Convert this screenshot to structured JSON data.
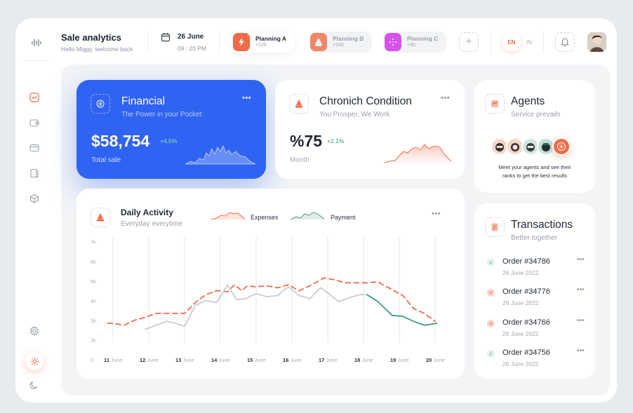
{
  "header": {
    "title": "Sale analytics",
    "subtitle": "Hello Miggy, welcome back",
    "date": "26 June",
    "time": "09 : 20 PM",
    "plans": [
      {
        "name": "Planning A",
        "count": "+120",
        "color": "#f06a47",
        "active": true
      },
      {
        "name": "Planning B",
        "count": "+100",
        "color": "#f06a47",
        "active": false
      },
      {
        "name": "Planning C",
        "count": "+90",
        "color": "#d653e8",
        "active": false
      }
    ],
    "lang_active": "EN",
    "lang_other": "IN"
  },
  "financial": {
    "title": "Financial",
    "subtitle": "The Power in your Pocket",
    "value": "$58,754",
    "delta": "+4,5%",
    "caption": "Total sale"
  },
  "chronic": {
    "title": "Chronich Condition",
    "subtitle": "You Prosper, We Work",
    "value": "%75",
    "delta": "+2.1%",
    "caption": "Month"
  },
  "agents": {
    "title": "Agents",
    "subtitle": "Service prevails",
    "text_line1": "Meet your agents and see their",
    "text_line2": "ranks to get the best results"
  },
  "activity": {
    "title": "Daily Activity",
    "subtitle": "Everyday everytime",
    "legend_expenses": "Expenses",
    "legend_payment": "Payment"
  },
  "transactions": {
    "title": "Transactions",
    "subtitle": "Better together",
    "items": [
      {
        "order": "Order #34786",
        "date": "26 June 2022",
        "status": "done"
      },
      {
        "order": "Order #34776",
        "date": "26 June 2022",
        "status": "cancel"
      },
      {
        "order": "Order #34766",
        "date": "26 June 2022",
        "status": "cancel"
      },
      {
        "order": "Order #34756",
        "date": "26 June 2022",
        "status": "done"
      }
    ]
  },
  "colors": {
    "accent": "#f06a47",
    "blue": "#2f63f1",
    "green": "#3aa58a",
    "teal": "#4e9b8c"
  },
  "chart_data": {
    "type": "line",
    "x_ticks": [
      {
        "num": "11",
        "label": "June"
      },
      {
        "num": "12",
        "label": "June"
      },
      {
        "num": "13",
        "label": "June"
      },
      {
        "num": "14",
        "label": "June"
      },
      {
        "num": "15",
        "label": "June"
      },
      {
        "num": "16",
        "label": "June"
      },
      {
        "num": "17",
        "label": "June"
      },
      {
        "num": "18",
        "label": "June"
      },
      {
        "num": "19",
        "label": "June"
      },
      {
        "num": "20",
        "label": "June"
      }
    ],
    "y_ticks": [
      "0",
      "2h",
      "3h",
      "4h",
      "5h",
      "6h",
      "7h"
    ],
    "ylim": [
      1,
      7
    ],
    "series": [
      {
        "name": "Expenses",
        "color": "#f06a47",
        "dashed": true,
        "x": [
          10.85,
          11.0,
          11.3,
          11.6,
          11.9,
          12.2,
          12.5,
          12.75,
          13.0,
          13.3,
          13.6,
          13.9,
          14.2,
          14.4,
          14.6,
          14.75,
          15.0,
          15.3,
          15.6,
          15.9,
          16.2,
          16.5,
          16.9,
          17.2,
          17.5,
          17.8,
          18.1,
          18.4,
          18.8,
          19.1,
          19.4,
          19.7,
          20.0
        ],
        "y": [
          2.95,
          2.95,
          2.85,
          3.1,
          3.25,
          3.45,
          3.45,
          3.45,
          3.45,
          4.0,
          4.4,
          4.6,
          4.55,
          4.9,
          4.6,
          4.85,
          4.8,
          4.85,
          4.75,
          4.9,
          4.6,
          4.85,
          5.25,
          5.15,
          5.0,
          5.0,
          5.0,
          5.05,
          4.65,
          4.35,
          3.7,
          3.45,
          3.05
        ]
      },
      {
        "name": "Payment",
        "color": "#c8cdd2",
        "dashed": false,
        "x": [
          11.9,
          12.2,
          12.5,
          12.75,
          13.0,
          13.3,
          13.6,
          13.9,
          14.2,
          14.45,
          14.7,
          15.0,
          15.3,
          15.6,
          15.9,
          16.2,
          16.5,
          16.8,
          17.0,
          17.3,
          17.6,
          17.9,
          18.1
        ],
        "y": [
          2.65,
          2.85,
          3.05,
          2.95,
          2.8,
          3.85,
          4.1,
          4.0,
          4.9,
          4.15,
          4.2,
          4.45,
          4.3,
          4.35,
          4.8,
          4.35,
          4.2,
          4.75,
          4.5,
          4.05,
          4.25,
          4.4,
          4.4
        ]
      },
      {
        "name": "Payment",
        "color": "#3f9a86",
        "dashed": false,
        "x": [
          18.1,
          18.4,
          18.8,
          19.1,
          19.4,
          19.7,
          20.05
        ],
        "y": [
          4.4,
          4.05,
          3.35,
          3.3,
          3.05,
          2.85,
          2.95
        ]
      }
    ]
  }
}
